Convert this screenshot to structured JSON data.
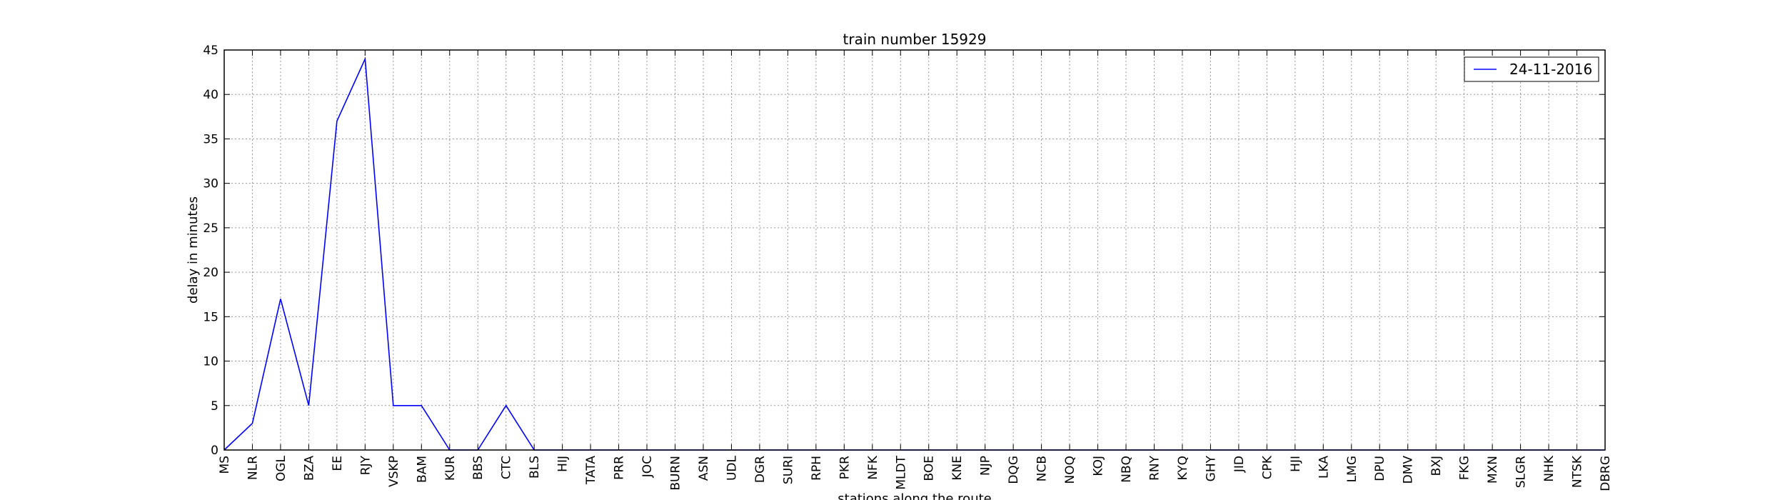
{
  "chart_data": {
    "type": "line",
    "title": "train number 15929",
    "xlabel": "stations along the route",
    "ylabel": "delay in minutes",
    "ylim": [
      0,
      45
    ],
    "yticks": [
      0,
      5,
      10,
      15,
      20,
      25,
      30,
      35,
      40,
      45
    ],
    "grid": true,
    "legend_position": "top-right",
    "categories": [
      "MS",
      "NLR",
      "OGL",
      "BZA",
      "EE",
      "RJY",
      "VSKP",
      "BAM",
      "KUR",
      "BBS",
      "CTC",
      "BLS",
      "HIJ",
      "TATA",
      "PRR",
      "JOC",
      "BURN",
      "ASN",
      "UDL",
      "DGR",
      "SURI",
      "RPH",
      "PKR",
      "NFK",
      "MLDT",
      "BOE",
      "KNE",
      "NJP",
      "DQG",
      "NCB",
      "NOQ",
      "KOJ",
      "NBQ",
      "RNY",
      "KYQ",
      "GHY",
      "JID",
      "CPK",
      "HJI",
      "LKA",
      "LMG",
      "DPU",
      "DMV",
      "BXJ",
      "FKG",
      "MXN",
      "SLGR",
      "NHK",
      "NTSK",
      "DBRG"
    ],
    "series": [
      {
        "name": "24-11-2016",
        "color": "#0000ff",
        "values": [
          0,
          3,
          17,
          5,
          37,
          44,
          5,
          5,
          0,
          0,
          5,
          0,
          0,
          0,
          0,
          0,
          0,
          0,
          0,
          0,
          0,
          0,
          0,
          0,
          0,
          0,
          0,
          0,
          0,
          0,
          0,
          0,
          0,
          0,
          0,
          0,
          0,
          0,
          0,
          0,
          0,
          0,
          0,
          0,
          0,
          0,
          0,
          0,
          0,
          0
        ]
      }
    ]
  }
}
